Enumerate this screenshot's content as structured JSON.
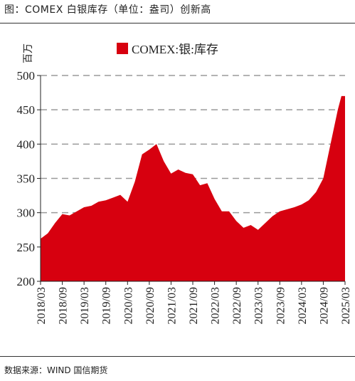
{
  "figure": {
    "title": "图：COMEX 白银库存（单位：盎司）创新高",
    "source": "数据来源：WIND 国信期货"
  },
  "chart_data": {
    "type": "area",
    "title": "",
    "ylabel": "百万",
    "xlabel": "",
    "ylim": [
      200,
      500
    ],
    "yticks": [
      200,
      250,
      300,
      350,
      400,
      450,
      500
    ],
    "grid": "horizontal dashed",
    "legend_position": "top",
    "colors": {
      "series": "#d7000f",
      "grid": "#9a9a9a",
      "axis": "#222222"
    },
    "x_tick_labels": [
      "2018/03",
      "2018/09",
      "2019/03",
      "2019/09",
      "2020/03",
      "2020/09",
      "2021/03",
      "2021/09",
      "2022/03",
      "2022/09",
      "2023/03",
      "2023/09",
      "2024/03",
      "2024/09",
      "2025/03"
    ],
    "series": [
      {
        "name": "COMEX:银:库存",
        "x": [
          "2018/03",
          "2018/05",
          "2018/07",
          "2018/09",
          "2018/11",
          "2019/01",
          "2019/03",
          "2019/05",
          "2019/07",
          "2019/09",
          "2019/11",
          "2020/01",
          "2020/03",
          "2020/05",
          "2020/07",
          "2020/09",
          "2020/11",
          "2021/01",
          "2021/03",
          "2021/05",
          "2021/07",
          "2021/09",
          "2021/11",
          "2022/01",
          "2022/03",
          "2022/05",
          "2022/07",
          "2022/09",
          "2022/11",
          "2023/01",
          "2023/03",
          "2023/05",
          "2023/07",
          "2023/09",
          "2023/11",
          "2024/01",
          "2024/03",
          "2024/05",
          "2024/07",
          "2024/09",
          "2024/11",
          "2025/01",
          "2025/02",
          "2025/03"
        ],
        "values": [
          262,
          270,
          285,
          298,
          296,
          302,
          308,
          310,
          316,
          318,
          322,
          326,
          316,
          345,
          385,
          392,
          400,
          375,
          357,
          363,
          358,
          356,
          340,
          343,
          320,
          302,
          302,
          288,
          278,
          282,
          275,
          285,
          295,
          302,
          305,
          308,
          312,
          318,
          330,
          350,
          400,
          450,
          470,
          470
        ]
      }
    ]
  }
}
